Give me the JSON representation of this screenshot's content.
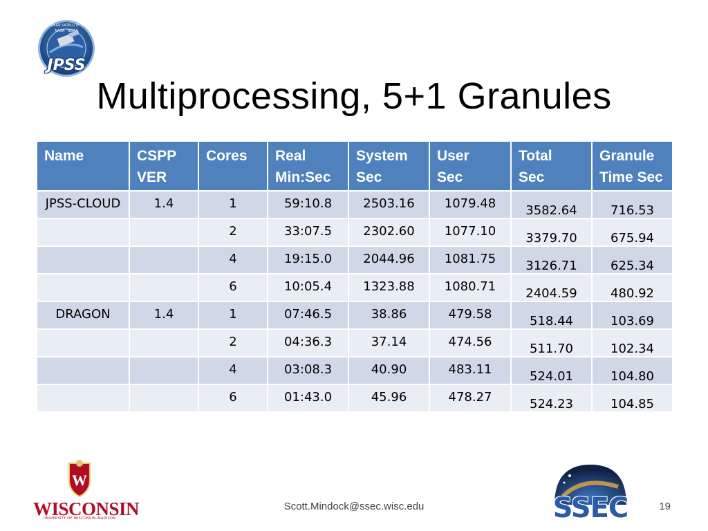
{
  "slide": {
    "title": "Multiprocessing, 5+1 Granules",
    "footer_email": "Scott.Mindock@ssec.wisc.edu",
    "slide_number": "19"
  },
  "logos": {
    "jpss": {
      "text": "JPSS",
      "ring_text": "JOINT POLAR SATELLITE SYSTEM",
      "ring_sub": "NASA · NOAA"
    },
    "uw": {
      "text": "WISCONSIN",
      "sub": "UNIVERSITY OF WISCONSIN–MADISON",
      "crest": "W"
    },
    "ssec": {
      "text": "SSEC"
    }
  },
  "table": {
    "headers": [
      [
        "Name"
      ],
      [
        "CSPP",
        "VER"
      ],
      [
        "Cores"
      ],
      [
        "Real",
        "Min:Sec"
      ],
      [
        "System",
        "Sec"
      ],
      [
        "User",
        "Sec"
      ],
      [
        "Total",
        "Sec"
      ],
      [
        "Granule",
        "Time Sec"
      ]
    ],
    "rows": [
      [
        "JPSS-CLOUD",
        "1.4",
        "1",
        "59:10.8",
        "2503.16",
        "1079.48",
        "3582.64",
        "716.53"
      ],
      [
        "",
        "",
        "2",
        "33:07.5",
        "2302.60",
        "1077.10",
        "3379.70",
        "675.94"
      ],
      [
        "",
        "",
        "4",
        "19:15.0",
        "2044.96",
        "1081.75",
        "3126.71",
        "625.34"
      ],
      [
        "",
        "",
        "6",
        "10:05.4",
        "1323.88",
        "1080.71",
        "2404.59",
        "480.92"
      ],
      [
        "DRAGON",
        "1.4",
        "1",
        "07:46.5",
        "38.86",
        "479.58",
        "518.44",
        "103.69"
      ],
      [
        "",
        "",
        "2",
        "04:36.3",
        "37.14",
        "474.56",
        "511.70",
        "102.34"
      ],
      [
        "",
        "",
        "4",
        "03:08.3",
        "40.90",
        "483.11",
        "524.01",
        "104.80"
      ],
      [
        "",
        "",
        "6",
        "01:43.0",
        "45.96",
        "478.27",
        "524.23",
        "104.85"
      ]
    ]
  },
  "colors": {
    "header_bg": "#4f81bd",
    "row_odd": "#d0d8e8",
    "row_even": "#e9edf4",
    "uw_red": "#b00d23",
    "ssec_blue": "#2a5aa8"
  }
}
